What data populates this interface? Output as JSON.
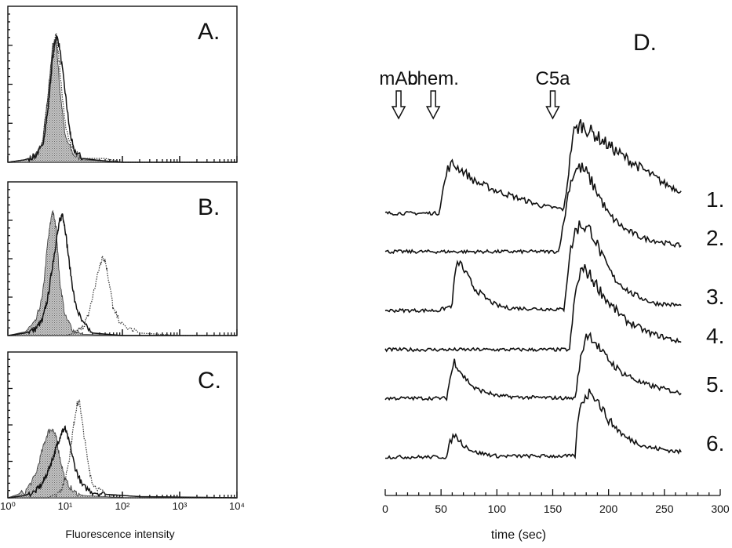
{
  "chart_data": [
    {
      "type": "area",
      "panel_label": "A.",
      "x_scale": "log",
      "xlim": [
        1,
        10000
      ],
      "series": [
        {
          "style": "filled",
          "x": [
            1,
            2,
            3,
            4,
            5,
            6,
            7,
            8,
            10,
            14,
            20,
            50,
            100,
            10000
          ],
          "values": [
            0,
            0.02,
            0.05,
            0.15,
            0.5,
            0.9,
            0.95,
            0.6,
            0.2,
            0.06,
            0.02,
            0.01,
            0,
            0
          ]
        },
        {
          "style": "solid",
          "x": [
            1,
            2,
            3,
            4,
            5,
            6,
            7,
            8,
            10,
            12,
            14,
            20,
            50,
            100,
            10000
          ],
          "values": [
            0,
            0.02,
            0.05,
            0.12,
            0.4,
            0.8,
            1.0,
            0.9,
            0.55,
            0.25,
            0.1,
            0.03,
            0.01,
            0,
            0
          ]
        },
        {
          "style": "dotted",
          "x": [
            1,
            2,
            3,
            4,
            5,
            6,
            7,
            8,
            10,
            14,
            20,
            50,
            100,
            10000
          ],
          "values": [
            0,
            0.02,
            0.05,
            0.15,
            0.5,
            0.9,
            1.0,
            0.75,
            0.3,
            0.08,
            0.03,
            0.03,
            0,
            0
          ]
        }
      ]
    },
    {
      "type": "area",
      "panel_label": "B.",
      "x_scale": "log",
      "xlim": [
        1,
        10000
      ],
      "series": [
        {
          "style": "filled",
          "x": [
            1,
            2,
            3,
            4,
            5,
            6,
            7,
            8,
            10,
            14,
            20,
            100,
            10000
          ],
          "values": [
            0,
            0.03,
            0.1,
            0.3,
            0.75,
            1.0,
            0.85,
            0.45,
            0.15,
            0.04,
            0.01,
            0,
            0
          ]
        },
        {
          "style": "solid",
          "x": [
            1,
            2,
            3,
            4,
            5,
            6,
            7,
            8,
            9,
            10,
            12,
            15,
            20,
            30,
            100,
            10000
          ],
          "values": [
            0,
            0.02,
            0.05,
            0.12,
            0.3,
            0.55,
            0.75,
            0.9,
            0.97,
            0.85,
            0.55,
            0.25,
            0.1,
            0.02,
            0,
            0
          ]
        },
        {
          "style": "dotted",
          "x": [
            1,
            10,
            15,
            20,
            25,
            30,
            40,
            45,
            50,
            60,
            70,
            100,
            200,
            1000,
            10000
          ],
          "values": [
            0,
            0,
            0.02,
            0.06,
            0.15,
            0.3,
            0.55,
            0.62,
            0.6,
            0.4,
            0.2,
            0.08,
            0.02,
            0,
            0
          ]
        }
      ]
    },
    {
      "type": "area",
      "panel_label": "C.",
      "x_scale": "log",
      "x_tick_labels": [
        "10⁰",
        "10¹",
        "10²",
        "10³",
        "10⁴"
      ],
      "xlabel": "Fluorescence intensity",
      "xlim": [
        1,
        10000
      ],
      "series": [
        {
          "style": "filled",
          "x": [
            1,
            2,
            3,
            4,
            5,
            6,
            7,
            8,
            10,
            14,
            20,
            50,
            100,
            10000
          ],
          "values": [
            0,
            0.05,
            0.18,
            0.4,
            0.55,
            0.58,
            0.5,
            0.35,
            0.15,
            0.05,
            0.02,
            0.01,
            0,
            0
          ]
        },
        {
          "style": "solid",
          "x": [
            1,
            2,
            3,
            4,
            5,
            6,
            7,
            8,
            9,
            10,
            12,
            15,
            20,
            30,
            50,
            100,
            200,
            10000
          ],
          "values": [
            0,
            0.02,
            0.05,
            0.12,
            0.22,
            0.32,
            0.42,
            0.5,
            0.56,
            0.58,
            0.45,
            0.25,
            0.1,
            0.05,
            0.03,
            0.02,
            0.01,
            0
          ]
        },
        {
          "style": "dotted",
          "x": [
            1,
            5,
            8,
            10,
            12,
            14,
            16,
            18,
            20,
            25,
            30,
            50,
            100,
            10000
          ],
          "values": [
            0,
            0,
            0.05,
            0.15,
            0.35,
            0.6,
            0.78,
            0.8,
            0.62,
            0.3,
            0.12,
            0.03,
            0,
            0
          ]
        }
      ]
    },
    {
      "type": "line",
      "panel_label": "D.",
      "xlabel": "time (sec)",
      "xlim": [
        0,
        300
      ],
      "x_ticks": [
        0,
        50,
        100,
        150,
        200,
        250,
        300
      ],
      "annotations": [
        {
          "text": "mAb",
          "x": 12
        },
        {
          "text": "chem.",
          "x": 43
        },
        {
          "text": "C5a",
          "x": 150
        }
      ],
      "series": [
        {
          "name": "1.",
          "x": [
            0,
            48,
            52,
            56,
            60,
            70,
            80,
            100,
            120,
            140,
            160,
            163,
            168,
            175,
            190,
            210,
            230,
            250,
            265
          ],
          "values": [
            0,
            0,
            0.5,
            0.9,
            1.0,
            0.85,
            0.65,
            0.45,
            0.3,
            0.15,
            0.08,
            0.6,
            1.6,
            1.8,
            1.55,
            1.2,
            0.9,
            0.6,
            0.45
          ]
        },
        {
          "name": "2.",
          "x": [
            0,
            155,
            160,
            165,
            170,
            175,
            180,
            190,
            200,
            215,
            230,
            250,
            265
          ],
          "values": [
            0,
            0,
            0.6,
            1.35,
            1.65,
            1.7,
            1.6,
            1.2,
            0.75,
            0.45,
            0.28,
            0.18,
            0.12
          ]
        },
        {
          "name": "3.",
          "x": [
            0,
            48,
            60,
            62,
            66,
            72,
            80,
            90,
            100,
            110,
            160,
            165,
            170,
            175,
            185,
            195,
            205,
            220,
            240,
            265
          ],
          "values": [
            0,
            0,
            0.1,
            0.7,
            1.0,
            0.75,
            0.45,
            0.25,
            0.1,
            0.05,
            0.02,
            1.1,
            1.6,
            1.75,
            1.6,
            1.05,
            0.65,
            0.35,
            0.15,
            0.1
          ]
        },
        {
          "name": "4.",
          "x": [
            0,
            165,
            170,
            175,
            180,
            188,
            200,
            215,
            235,
            265
          ],
          "values": [
            0,
            0,
            1.1,
            1.6,
            1.6,
            1.35,
            0.95,
            0.6,
            0.35,
            0.15
          ]
        },
        {
          "name": "5.",
          "x": [
            0,
            55,
            58,
            62,
            70,
            80,
            100,
            120,
            170,
            175,
            180,
            185,
            195,
            210,
            230,
            265
          ],
          "values": [
            0,
            0,
            0.4,
            0.75,
            0.45,
            0.2,
            0.05,
            0.02,
            0,
            0.8,
            1.3,
            1.25,
            0.9,
            0.55,
            0.3,
            0.1
          ]
        },
        {
          "name": "6.",
          "x": [
            0,
            55,
            58,
            62,
            70,
            80,
            100,
            170,
            173,
            178,
            185,
            190,
            200,
            215,
            235,
            265
          ],
          "values": [
            0,
            0,
            0.3,
            0.45,
            0.25,
            0.1,
            0.02,
            0.02,
            0.85,
            1.2,
            1.35,
            1.15,
            0.75,
            0.4,
            0.2,
            0.1
          ]
        }
      ]
    }
  ]
}
